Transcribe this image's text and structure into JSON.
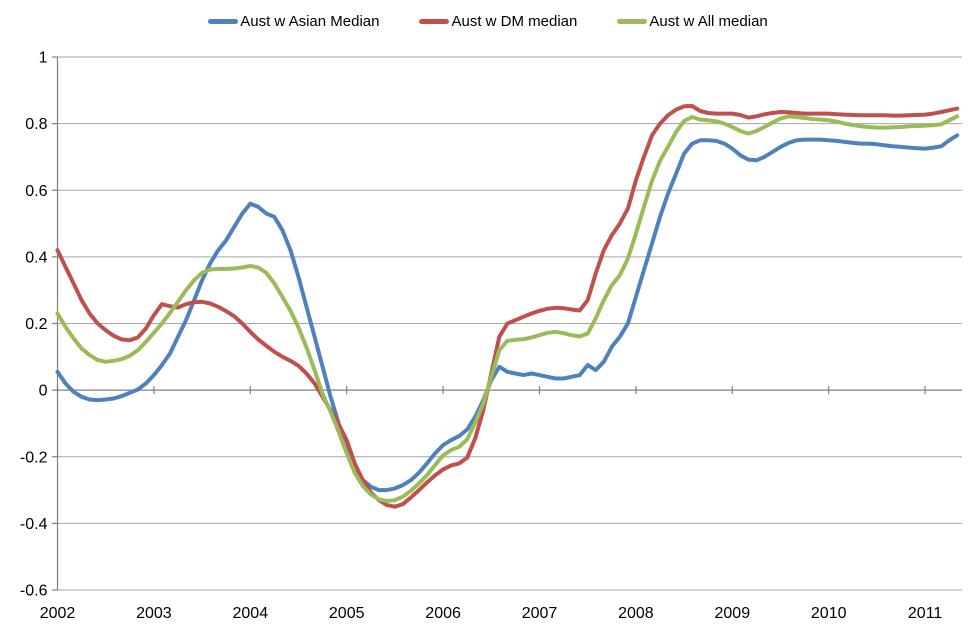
{
  "chart_data": {
    "type": "line",
    "title": "",
    "x_unit": "monthly",
    "x_start": 2002.0,
    "x_end": 2011.3333,
    "xlim": [
      2002,
      2011.42
    ],
    "ylim": [
      -0.6,
      1
    ],
    "grid": "horizontal",
    "legend_position": "top-center",
    "x_tick_labels": [
      "2002",
      "2003",
      "2004",
      "2005",
      "2006",
      "2007",
      "2008",
      "2009",
      "2010",
      "2011"
    ],
    "x_tick_values": [
      2002,
      2003,
      2004,
      2005,
      2006,
      2007,
      2008,
      2009,
      2010,
      2011
    ],
    "y_tick_labels": [
      "1",
      "0.8",
      "0.6",
      "0.4",
      "0.2",
      "0",
      "-0.2",
      "-0.4",
      "-0.6"
    ],
    "y_tick_values": [
      1,
      0.8,
      0.6,
      0.4,
      0.2,
      0,
      -0.2,
      -0.4,
      -0.6
    ],
    "series": [
      {
        "name": "Aust w Asian Median",
        "color": "#4F81BD",
        "values": [
          0.055,
          0.02,
          -0.005,
          -0.02,
          -0.028,
          -0.03,
          -0.028,
          -0.025,
          -0.018,
          -0.008,
          0.002,
          0.02,
          0.045,
          0.075,
          0.11,
          0.16,
          0.21,
          0.27,
          0.33,
          0.38,
          0.42,
          0.45,
          0.49,
          0.53,
          0.56,
          0.55,
          0.53,
          0.52,
          0.48,
          0.42,
          0.34,
          0.25,
          0.16,
          0.07,
          -0.02,
          -0.1,
          -0.17,
          -0.23,
          -0.27,
          -0.29,
          -0.3,
          -0.3,
          -0.295,
          -0.285,
          -0.27,
          -0.248,
          -0.22,
          -0.19,
          -0.165,
          -0.15,
          -0.138,
          -0.118,
          -0.08,
          -0.03,
          0.03,
          0.07,
          0.055,
          0.05,
          0.045,
          0.05,
          0.045,
          0.04,
          0.035,
          0.035,
          0.04,
          0.045,
          0.075,
          0.06,
          0.085,
          0.13,
          0.16,
          0.2,
          0.28,
          0.36,
          0.44,
          0.52,
          0.59,
          0.65,
          0.71,
          0.74,
          0.75,
          0.75,
          0.748,
          0.74,
          0.725,
          0.705,
          0.692,
          0.69,
          0.7,
          0.715,
          0.73,
          0.742,
          0.75,
          0.752,
          0.752,
          0.752,
          0.75,
          0.748,
          0.745,
          0.742,
          0.74,
          0.74,
          0.738,
          0.735,
          0.732,
          0.73,
          0.728,
          0.726,
          0.725,
          0.728,
          0.732,
          0.75,
          0.765
        ]
      },
      {
        "name": "Aust w DM median",
        "color": "#C0504D",
        "values": [
          0.42,
          0.37,
          0.32,
          0.27,
          0.23,
          0.2,
          0.18,
          0.163,
          0.152,
          0.15,
          0.158,
          0.185,
          0.225,
          0.258,
          0.252,
          0.248,
          0.258,
          0.264,
          0.265,
          0.26,
          0.25,
          0.237,
          0.222,
          0.2,
          0.175,
          0.152,
          0.133,
          0.115,
          0.1,
          0.088,
          0.073,
          0.05,
          0.02,
          -0.02,
          -0.06,
          -0.103,
          -0.15,
          -0.22,
          -0.27,
          -0.307,
          -0.33,
          -0.345,
          -0.35,
          -0.342,
          -0.322,
          -0.3,
          -0.277,
          -0.256,
          -0.238,
          -0.226,
          -0.22,
          -0.203,
          -0.145,
          -0.06,
          0.05,
          0.16,
          0.2,
          0.21,
          0.22,
          0.23,
          0.238,
          0.244,
          0.247,
          0.246,
          0.242,
          0.239,
          0.27,
          0.35,
          0.42,
          0.465,
          0.5,
          0.545,
          0.63,
          0.7,
          0.765,
          0.8,
          0.825,
          0.842,
          0.852,
          0.853,
          0.838,
          0.832,
          0.83,
          0.83,
          0.83,
          0.826,
          0.818,
          0.822,
          0.828,
          0.832,
          0.835,
          0.834,
          0.832,
          0.83,
          0.83,
          0.83,
          0.83,
          0.828,
          0.827,
          0.826,
          0.825,
          0.825,
          0.825,
          0.825,
          0.824,
          0.824,
          0.825,
          0.826,
          0.827,
          0.83,
          0.835,
          0.84,
          0.845
        ]
      },
      {
        "name": "Aust w All median",
        "color": "#9BBB59",
        "values": [
          0.23,
          0.19,
          0.155,
          0.125,
          0.105,
          0.09,
          0.085,
          0.088,
          0.093,
          0.103,
          0.12,
          0.145,
          0.172,
          0.2,
          0.232,
          0.265,
          0.3,
          0.33,
          0.352,
          0.362,
          0.364,
          0.364,
          0.365,
          0.368,
          0.373,
          0.368,
          0.352,
          0.32,
          0.28,
          0.238,
          0.188,
          0.128,
          0.06,
          -0.012,
          -0.065,
          -0.125,
          -0.19,
          -0.248,
          -0.288,
          -0.313,
          -0.328,
          -0.333,
          -0.33,
          -0.32,
          -0.302,
          -0.28,
          -0.255,
          -0.225,
          -0.196,
          -0.18,
          -0.17,
          -0.148,
          -0.098,
          -0.04,
          0.04,
          0.12,
          0.148,
          0.151,
          0.153,
          0.158,
          0.165,
          0.172,
          0.175,
          0.171,
          0.165,
          0.161,
          0.17,
          0.215,
          0.27,
          0.315,
          0.345,
          0.395,
          0.47,
          0.55,
          0.628,
          0.688,
          0.73,
          0.775,
          0.808,
          0.82,
          0.812,
          0.81,
          0.807,
          0.8,
          0.79,
          0.778,
          0.77,
          0.778,
          0.79,
          0.803,
          0.815,
          0.822,
          0.82,
          0.817,
          0.814,
          0.812,
          0.81,
          0.806,
          0.8,
          0.796,
          0.792,
          0.79,
          0.788,
          0.788,
          0.789,
          0.79,
          0.792,
          0.793,
          0.794,
          0.795,
          0.798,
          0.81,
          0.822
        ]
      }
    ]
  },
  "colors": {
    "background": "#ffffff",
    "gridline": "#A6A6A6",
    "axis": "#808080",
    "tick_text": "#000000"
  }
}
